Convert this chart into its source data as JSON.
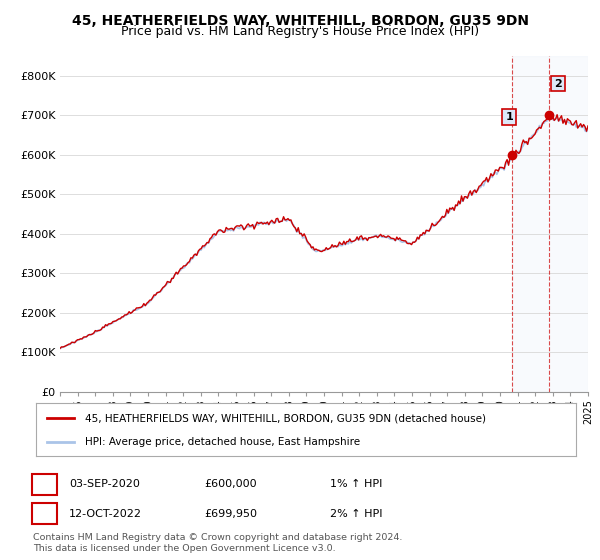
{
  "title": "45, HEATHERFIELDS WAY, WHITEHILL, BORDON, GU35 9DN",
  "subtitle": "Price paid vs. HM Land Registry's House Price Index (HPI)",
  "ylim": [
    0,
    850000
  ],
  "yticks": [
    0,
    100000,
    200000,
    300000,
    400000,
    500000,
    600000,
    700000,
    800000
  ],
  "ytick_labels": [
    "£0",
    "£100K",
    "£200K",
    "£300K",
    "£400K",
    "£500K",
    "£600K",
    "£700K",
    "£800K"
  ],
  "hpi_color": "#aac4e8",
  "price_color": "#cc0000",
  "legend_label_red": "45, HEATHERFIELDS WAY, WHITEHILL, BORDON, GU35 9DN (detached house)",
  "legend_label_blue": "HPI: Average price, detached house, East Hampshire",
  "annotation1_date": "03-SEP-2020",
  "annotation1_price": "£600,000",
  "annotation1_hpi": "1% ↑ HPI",
  "annotation1_t": 2020.67,
  "annotation1_price_val": 600000,
  "annotation2_date": "12-OCT-2022",
  "annotation2_price": "£699,950",
  "annotation2_hpi": "2% ↑ HPI",
  "annotation2_t": 2022.79,
  "annotation2_price_val": 699950,
  "footnote": "Contains HM Land Registry data © Crown copyright and database right 2024.\nThis data is licensed under the Open Government Licence v3.0.",
  "title_fontsize": 10,
  "subtitle_fontsize": 9,
  "background_color": "#ffffff",
  "plot_bg": "#ffffff",
  "grid_color": "#dddddd",
  "shade_color": "#dce8f8",
  "hatch_color": "#c8d8ee"
}
